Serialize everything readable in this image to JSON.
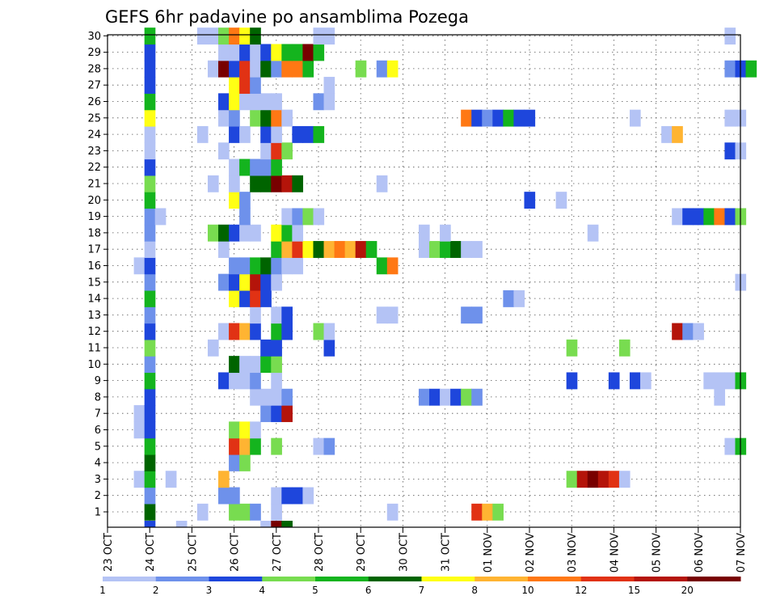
{
  "chart_data": {
    "type": "heatmap",
    "title": "GEFS 6hr padavine po ansamblima Pozega",
    "y_ticks": [
      "1",
      "2",
      "3",
      "4",
      "5",
      "6",
      "7",
      "8",
      "9",
      "10",
      "11",
      "12",
      "13",
      "14",
      "15",
      "16",
      "17",
      "18",
      "19",
      "20",
      "21",
      "22",
      "23",
      "24",
      "25",
      "26",
      "27",
      "28",
      "29",
      "30"
    ],
    "x_ticks": [
      "23 OCT",
      "24 OCT",
      "25 OCT",
      "26 OCT",
      "27 OCT",
      "28 OCT",
      "29 OCT",
      "30 OCT",
      "31 OCT",
      "01 NOV",
      "02 NOV",
      "03 NOV",
      "04 NOV",
      "05 NOV",
      "06 NOV",
      "07 NOV"
    ],
    "x_unit": "6h steps from 23 OCT 00Z",
    "colorbar": {
      "labels": [
        "1",
        "2",
        "3",
        "4",
        "5",
        "6",
        "7",
        "8",
        "10",
        "12",
        "15",
        "20"
      ],
      "colors": [
        "#b4c3f5",
        "#6e91eb",
        "#1e46dc",
        "#78dc50",
        "#14b41e",
        "#006400",
        "#ffff14",
        "#ffb432",
        "#ff7814",
        "#e13214",
        "#b4140a",
        "#780000"
      ]
    },
    "grid": "dotted",
    "cells": {
      "1": [
        [
          4,
          6
        ],
        [
          9,
          1
        ],
        [
          12,
          4
        ],
        [
          13,
          4
        ],
        [
          14,
          2
        ],
        [
          16,
          1
        ],
        [
          27,
          1
        ],
        [
          35,
          10
        ],
        [
          36,
          8
        ],
        [
          37,
          4
        ]
      ],
      "2": [
        [
          4,
          2
        ],
        [
          11,
          2
        ],
        [
          12,
          2
        ],
        [
          16,
          1
        ],
        [
          17,
          3
        ],
        [
          18,
          3
        ],
        [
          19,
          1
        ]
      ],
      "3": [
        [
          3,
          1
        ],
        [
          4,
          5
        ],
        [
          6,
          1
        ],
        [
          11,
          8
        ],
        [
          44,
          4
        ],
        [
          45,
          11
        ],
        [
          46,
          12
        ],
        [
          47,
          11
        ],
        [
          48,
          10
        ],
        [
          49,
          1
        ]
      ],
      "4": [
        [
          4,
          6
        ],
        [
          12,
          2
        ],
        [
          13,
          4
        ]
      ],
      "5": [
        [
          4,
          5
        ],
        [
          12,
          10
        ],
        [
          13,
          8
        ],
        [
          14,
          5
        ],
        [
          16,
          4
        ],
        [
          20,
          1
        ],
        [
          21,
          2
        ],
        [
          59,
          1
        ],
        [
          60,
          5
        ]
      ],
      "6": [
        [
          3,
          1
        ],
        [
          4,
          3
        ],
        [
          12,
          4
        ],
        [
          13,
          7
        ],
        [
          14,
          1
        ]
      ],
      "7": [
        [
          3,
          1
        ],
        [
          4,
          3
        ],
        [
          15,
          2
        ],
        [
          16,
          3
        ],
        [
          17,
          11
        ]
      ],
      "8": [
        [
          4,
          3
        ],
        [
          14,
          1
        ],
        [
          15,
          1
        ],
        [
          16,
          1
        ],
        [
          17,
          2
        ],
        [
          30,
          2
        ],
        [
          31,
          3
        ],
        [
          32,
          1
        ],
        [
          33,
          3
        ],
        [
          34,
          4
        ],
        [
          35,
          2
        ],
        [
          58,
          1
        ]
      ],
      "9": [
        [
          4,
          5
        ],
        [
          11,
          3
        ],
        [
          12,
          1
        ],
        [
          13,
          1
        ],
        [
          14,
          2
        ],
        [
          16,
          1
        ],
        [
          44,
          3
        ],
        [
          48,
          3
        ],
        [
          50,
          3
        ],
        [
          51,
          1
        ],
        [
          57,
          1
        ],
        [
          58,
          1
        ],
        [
          59,
          1
        ],
        [
          60,
          5
        ]
      ],
      "10": [
        [
          4,
          2
        ],
        [
          12,
          6
        ],
        [
          13,
          1
        ],
        [
          14,
          1
        ],
        [
          15,
          5
        ],
        [
          16,
          4
        ]
      ],
      "11": [
        [
          4,
          4
        ],
        [
          10,
          1
        ],
        [
          15,
          3
        ],
        [
          16,
          3
        ],
        [
          21,
          3
        ],
        [
          44,
          4
        ],
        [
          49,
          4
        ]
      ],
      "12": [
        [
          4,
          3
        ],
        [
          11,
          1
        ],
        [
          12,
          10
        ],
        [
          13,
          8
        ],
        [
          14,
          3
        ],
        [
          16,
          5
        ],
        [
          17,
          3
        ],
        [
          20,
          4
        ],
        [
          21,
          1
        ],
        [
          54,
          11
        ],
        [
          55,
          2
        ],
        [
          56,
          1
        ]
      ],
      "13": [
        [
          4,
          2
        ],
        [
          14,
          1
        ],
        [
          16,
          1
        ],
        [
          17,
          3
        ],
        [
          26,
          1
        ],
        [
          27,
          1
        ],
        [
          34,
          2
        ],
        [
          35,
          2
        ]
      ],
      "14": [
        [
          4,
          5
        ],
        [
          12,
          7
        ],
        [
          13,
          3
        ],
        [
          14,
          10
        ],
        [
          15,
          3
        ],
        [
          38,
          2
        ],
        [
          39,
          1
        ]
      ],
      "15": [
        [
          4,
          2
        ],
        [
          11,
          2
        ],
        [
          12,
          3
        ],
        [
          13,
          7
        ],
        [
          14,
          11
        ],
        [
          15,
          3
        ],
        [
          16,
          1
        ],
        [
          60,
          1
        ]
      ],
      "16": [
        [
          3,
          1
        ],
        [
          4,
          3
        ],
        [
          12,
          2
        ],
        [
          13,
          2
        ],
        [
          14,
          5
        ],
        [
          15,
          6
        ],
        [
          16,
          2
        ],
        [
          17,
          1
        ],
        [
          18,
          1
        ],
        [
          26,
          5
        ],
        [
          27,
          9
        ]
      ],
      "17": [
        [
          4,
          1
        ],
        [
          11,
          1
        ],
        [
          16,
          5
        ],
        [
          17,
          8
        ],
        [
          18,
          10
        ],
        [
          19,
          7
        ],
        [
          20,
          6
        ],
        [
          21,
          8
        ],
        [
          22,
          9
        ],
        [
          23,
          8
        ],
        [
          24,
          11
        ],
        [
          25,
          5
        ],
        [
          30,
          1
        ],
        [
          31,
          4
        ],
        [
          32,
          5
        ],
        [
          33,
          6
        ],
        [
          34,
          1
        ],
        [
          35,
          1
        ]
      ],
      "18": [
        [
          4,
          2
        ],
        [
          10,
          4
        ],
        [
          11,
          6
        ],
        [
          12,
          3
        ],
        [
          13,
          1
        ],
        [
          14,
          1
        ],
        [
          16,
          7
        ],
        [
          17,
          5
        ],
        [
          18,
          1
        ],
        [
          30,
          1
        ],
        [
          32,
          1
        ],
        [
          46,
          1
        ]
      ],
      "19": [
        [
          4,
          2
        ],
        [
          5,
          1
        ],
        [
          13,
          2
        ],
        [
          17,
          1
        ],
        [
          18,
          2
        ],
        [
          19,
          4
        ],
        [
          20,
          1
        ],
        [
          54,
          1
        ],
        [
          55,
          3
        ],
        [
          56,
          3
        ],
        [
          57,
          5
        ],
        [
          58,
          9
        ],
        [
          59,
          3
        ],
        [
          60,
          4
        ]
      ],
      "20": [
        [
          4,
          5
        ],
        [
          12,
          7
        ],
        [
          13,
          2
        ],
        [
          40,
          3
        ],
        [
          43,
          1
        ]
      ],
      "21": [
        [
          4,
          4
        ],
        [
          10,
          1
        ],
        [
          12,
          1
        ],
        [
          14,
          6
        ],
        [
          15,
          6
        ],
        [
          16,
          12
        ],
        [
          17,
          11
        ],
        [
          18,
          6
        ],
        [
          26,
          1
        ]
      ],
      "22": [
        [
          4,
          3
        ],
        [
          12,
          1
        ],
        [
          13,
          5
        ],
        [
          14,
          2
        ],
        [
          15,
          2
        ],
        [
          16,
          5
        ]
      ],
      "23": [
        [
          4,
          1
        ],
        [
          11,
          1
        ],
        [
          15,
          1
        ],
        [
          16,
          10
        ],
        [
          17,
          4
        ],
        [
          59,
          3
        ],
        [
          60,
          1
        ]
      ],
      "24": [
        [
          4,
          1
        ],
        [
          9,
          1
        ],
        [
          12,
          3
        ],
        [
          13,
          1
        ],
        [
          15,
          3
        ],
        [
          16,
          1
        ],
        [
          18,
          3
        ],
        [
          19,
          3
        ],
        [
          20,
          5
        ],
        [
          53,
          1
        ],
        [
          54,
          8
        ]
      ],
      "25": [
        [
          4,
          7
        ],
        [
          11,
          1
        ],
        [
          12,
          2
        ],
        [
          14,
          4
        ],
        [
          15,
          6
        ],
        [
          16,
          9
        ],
        [
          17,
          1
        ],
        [
          34,
          9
        ],
        [
          35,
          3
        ],
        [
          36,
          2
        ],
        [
          37,
          3
        ],
        [
          38,
          5
        ],
        [
          39,
          3
        ],
        [
          40,
          3
        ],
        [
          50,
          1
        ],
        [
          59,
          1
        ],
        [
          60,
          1
        ]
      ],
      "26": [
        [
          4,
          5
        ],
        [
          11,
          3
        ],
        [
          12,
          7
        ],
        [
          13,
          1
        ],
        [
          14,
          1
        ],
        [
          15,
          1
        ],
        [
          16,
          1
        ],
        [
          20,
          2
        ],
        [
          21,
          1
        ]
      ],
      "27": [
        [
          4,
          3
        ],
        [
          12,
          7
        ],
        [
          13,
          10
        ],
        [
          14,
          2
        ],
        [
          21,
          1
        ]
      ],
      "28": [
        [
          4,
          3
        ],
        [
          10,
          1
        ],
        [
          11,
          12
        ],
        [
          12,
          3
        ],
        [
          13,
          10
        ],
        [
          14,
          1
        ],
        [
          15,
          6
        ],
        [
          16,
          2
        ],
        [
          17,
          9
        ],
        [
          18,
          9
        ],
        [
          19,
          5
        ],
        [
          24,
          4
        ],
        [
          26,
          2
        ],
        [
          27,
          7
        ],
        [
          59,
          2
        ],
        [
          60,
          3
        ],
        [
          61,
          5
        ]
      ],
      "29": [
        [
          4,
          3
        ],
        [
          11,
          1
        ],
        [
          12,
          1
        ],
        [
          13,
          3
        ],
        [
          14,
          1
        ],
        [
          15,
          3
        ],
        [
          16,
          7
        ],
        [
          17,
          5
        ],
        [
          18,
          5
        ],
        [
          19,
          12
        ],
        [
          20,
          5
        ]
      ],
      "30": [
        [
          4,
          5
        ],
        [
          9,
          1
        ],
        [
          10,
          1
        ],
        [
          11,
          4
        ],
        [
          12,
          9
        ],
        [
          13,
          7
        ],
        [
          14,
          6
        ],
        [
          20,
          1
        ],
        [
          21,
          1
        ],
        [
          59,
          1
        ]
      ]
    },
    "below_axis_cells": [
      [
        4,
        3
      ],
      [
        7,
        1
      ],
      [
        15,
        1
      ],
      [
        16,
        12
      ],
      [
        17,
        6
      ]
    ]
  }
}
